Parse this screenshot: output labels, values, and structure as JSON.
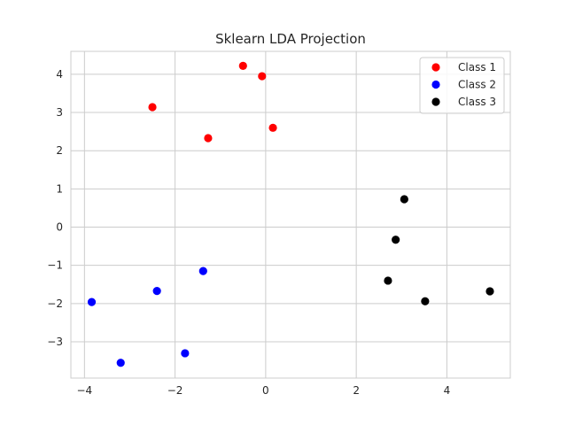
{
  "chart_data": {
    "type": "scatter",
    "title": "Sklearn LDA Projection",
    "xlabel": "",
    "ylabel": "",
    "xlim": [
      -4.3,
      5.4
    ],
    "ylim": [
      -3.95,
      4.6
    ],
    "xticks": [
      -4,
      -2,
      0,
      2,
      4
    ],
    "yticks": [
      -3,
      -2,
      -1,
      0,
      1,
      2,
      3,
      4
    ],
    "grid": true,
    "legend": "top-right",
    "series": [
      {
        "name": "Class 1",
        "color": "#ff0000",
        "points": [
          {
            "x": -0.5,
            "y": 4.22
          },
          {
            "x": -0.08,
            "y": 3.95
          },
          {
            "x": -2.5,
            "y": 3.14
          },
          {
            "x": -1.27,
            "y": 2.33
          },
          {
            "x": 0.16,
            "y": 2.6
          }
        ]
      },
      {
        "name": "Class 2",
        "color": "#0000ff",
        "points": [
          {
            "x": -1.38,
            "y": -1.15
          },
          {
            "x": -2.4,
            "y": -1.67
          },
          {
            "x": -3.84,
            "y": -1.96
          },
          {
            "x": -1.78,
            "y": -3.3
          },
          {
            "x": -3.2,
            "y": -3.55
          }
        ]
      },
      {
        "name": "Class 3",
        "color": "#000000",
        "points": [
          {
            "x": 3.06,
            "y": 0.73
          },
          {
            "x": 2.87,
            "y": -0.33
          },
          {
            "x": 2.7,
            "y": -1.4
          },
          {
            "x": 3.52,
            "y": -1.94
          },
          {
            "x": 4.95,
            "y": -1.68
          }
        ]
      }
    ]
  }
}
